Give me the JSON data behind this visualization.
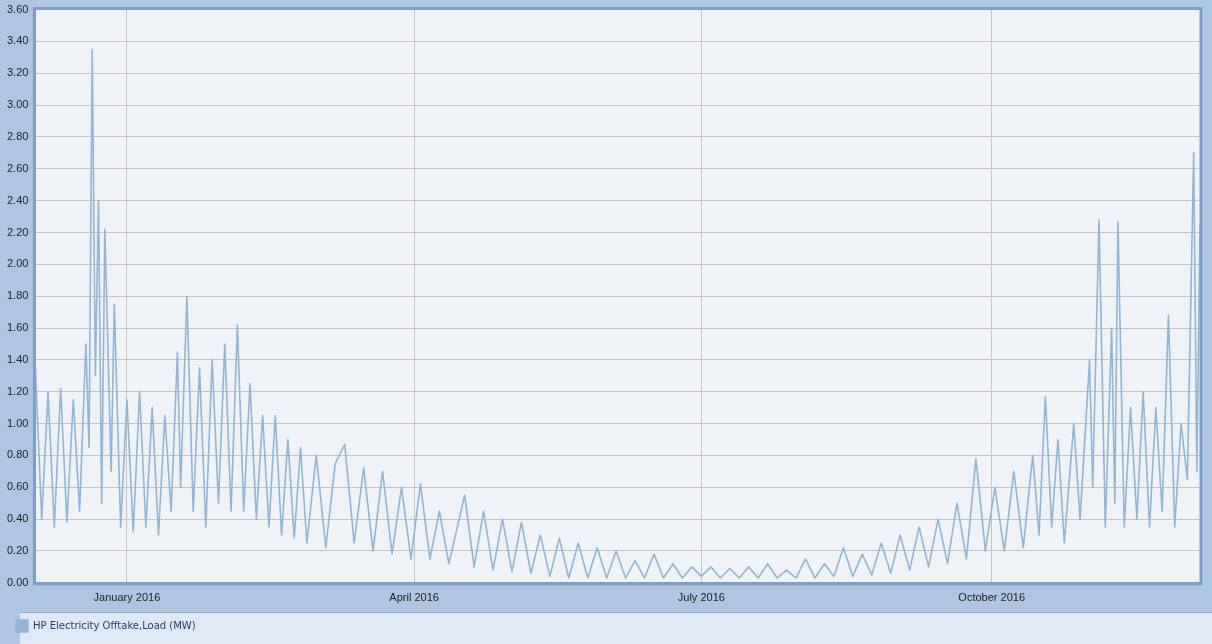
{
  "chart_data": {
    "type": "line",
    "xlim": [
      "2015-12-03",
      "2016-12-06"
    ],
    "xticks": [
      {
        "value": "2016-01-01",
        "label": "January 2016"
      },
      {
        "value": "2016-04-01",
        "label": "April 2016"
      },
      {
        "value": "2016-07-01",
        "label": "July 2016"
      },
      {
        "value": "2016-10-01",
        "label": "October 2016"
      }
    ],
    "ylim": [
      0,
      3.6
    ],
    "yticks": [
      {
        "value": 0,
        "label": "0.00"
      },
      {
        "value": 0.2,
        "label": "0.20"
      },
      {
        "value": 0.4,
        "label": "0.40"
      },
      {
        "value": 0.6,
        "label": "0.60"
      },
      {
        "value": 0.8,
        "label": "0.80"
      },
      {
        "value": 1,
        "label": "1.00"
      },
      {
        "value": 1.2,
        "label": "1.20"
      },
      {
        "value": 1.4,
        "label": "1.40"
      },
      {
        "value": 1.6,
        "label": "1.60"
      },
      {
        "value": 1.8,
        "label": "1.80"
      },
      {
        "value": 2,
        "label": "2.00"
      },
      {
        "value": 2.2,
        "label": "2.20"
      },
      {
        "value": 2.4,
        "label": "2.40"
      },
      {
        "value": 2.6,
        "label": "2.60"
      },
      {
        "value": 2.8,
        "label": "2.80"
      },
      {
        "value": 3,
        "label": "3.00"
      },
      {
        "value": 3.2,
        "label": "3.20"
      },
      {
        "value": 3.4,
        "label": "3.40"
      },
      {
        "value": 3.6,
        "label": "3.60"
      }
    ],
    "grid": true,
    "legend": "bottom",
    "marker": "none",
    "line_style": "solid",
    "x": [
      "2015-12-03",
      "2015-12-05",
      "2015-12-07",
      "2015-12-09",
      "2015-12-11",
      "2015-12-13",
      "2015-12-15",
      "2015-12-17",
      "2015-12-19",
      "2015-12-20",
      "2015-12-21",
      "2015-12-22",
      "2015-12-23",
      "2015-12-24",
      "2015-12-25",
      "2015-12-27",
      "2015-12-28",
      "2015-12-30",
      "2016-01-01",
      "2016-01-03",
      "2016-01-05",
      "2016-01-07",
      "2016-01-09",
      "2016-01-11",
      "2016-01-13",
      "2016-01-15",
      "2016-01-17",
      "2016-01-18",
      "2016-01-20",
      "2016-01-22",
      "2016-01-24",
      "2016-01-26",
      "2016-01-28",
      "2016-01-30",
      "2016-02-01",
      "2016-02-03",
      "2016-02-05",
      "2016-02-07",
      "2016-02-09",
      "2016-02-11",
      "2016-02-13",
      "2016-02-15",
      "2016-02-17",
      "2016-02-19",
      "2016-02-21",
      "2016-02-23",
      "2016-02-25",
      "2016-02-27",
      "2016-03-01",
      "2016-03-04",
      "2016-03-07",
      "2016-03-10",
      "2016-03-13",
      "2016-03-16",
      "2016-03-19",
      "2016-03-22",
      "2016-03-25",
      "2016-03-28",
      "2016-03-31",
      "2016-04-03",
      "2016-04-06",
      "2016-04-09",
      "2016-04-12",
      "2016-04-17",
      "2016-04-20",
      "2016-04-23",
      "2016-04-26",
      "2016-04-29",
      "2016-05-02",
      "2016-05-05",
      "2016-05-08",
      "2016-05-11",
      "2016-05-14",
      "2016-05-17",
      "2016-05-20",
      "2016-05-23",
      "2016-05-26",
      "2016-05-29",
      "2016-06-01",
      "2016-06-04",
      "2016-06-07",
      "2016-06-10",
      "2016-06-13",
      "2016-06-16",
      "2016-06-19",
      "2016-06-22",
      "2016-06-25",
      "2016-06-28",
      "2016-07-01",
      "2016-07-04",
      "2016-07-07",
      "2016-07-10",
      "2016-07-13",
      "2016-07-16",
      "2016-07-19",
      "2016-07-22",
      "2016-07-25",
      "2016-07-28",
      "2016-07-31",
      "2016-08-03",
      "2016-08-06",
      "2016-08-09",
      "2016-08-12",
      "2016-08-15",
      "2016-08-18",
      "2016-08-21",
      "2016-08-24",
      "2016-08-27",
      "2016-08-30",
      "2016-09-02",
      "2016-09-05",
      "2016-09-08",
      "2016-09-11",
      "2016-09-14",
      "2016-09-17",
      "2016-09-20",
      "2016-09-23",
      "2016-09-26",
      "2016-09-29",
      "2016-10-02",
      "2016-10-05",
      "2016-10-08",
      "2016-10-11",
      "2016-10-14",
      "2016-10-16",
      "2016-10-18",
      "2016-10-20",
      "2016-10-22",
      "2016-10-24",
      "2016-10-27",
      "2016-10-29",
      "2016-11-01",
      "2016-11-02",
      "2016-11-04",
      "2016-11-06",
      "2016-11-08",
      "2016-11-09",
      "2016-11-10",
      "2016-11-12",
      "2016-11-14",
      "2016-11-16",
      "2016-11-18",
      "2016-11-20",
      "2016-11-22",
      "2016-11-24",
      "2016-11-26",
      "2016-11-28",
      "2016-11-30",
      "2016-12-02",
      "2016-12-04",
      "2016-12-05",
      "2016-12-06"
    ],
    "series": [
      {
        "name": "HP Electricity Offtake,Load (MW)",
        "color": "#93b5d6",
        "values": [
          1.35,
          0.4,
          1.2,
          0.35,
          1.22,
          0.38,
          1.15,
          0.45,
          1.5,
          0.85,
          3.35,
          1.3,
          2.4,
          0.5,
          2.22,
          0.7,
          1.75,
          0.35,
          1.15,
          0.32,
          1.2,
          0.35,
          1.1,
          0.3,
          1.05,
          0.45,
          1.45,
          0.6,
          1.8,
          0.45,
          1.35,
          0.35,
          1.4,
          0.5,
          1.5,
          0.45,
          1.62,
          0.45,
          1.25,
          0.4,
          1.05,
          0.35,
          1.05,
          0.3,
          0.9,
          0.28,
          0.85,
          0.25,
          0.8,
          0.22,
          0.75,
          0.87,
          0.25,
          0.72,
          0.2,
          0.7,
          0.18,
          0.6,
          0.15,
          0.62,
          0.15,
          0.45,
          0.12,
          0.55,
          0.1,
          0.45,
          0.08,
          0.4,
          0.07,
          0.38,
          0.06,
          0.3,
          0.04,
          0.28,
          0.03,
          0.25,
          0.03,
          0.22,
          0.03,
          0.2,
          0.03,
          0.14,
          0.03,
          0.18,
          0.03,
          0.12,
          0.03,
          0.1,
          0.04,
          0.1,
          0.03,
          0.09,
          0.03,
          0.1,
          0.03,
          0.12,
          0.03,
          0.08,
          0.03,
          0.15,
          0.03,
          0.12,
          0.04,
          0.22,
          0.04,
          0.18,
          0.05,
          0.25,
          0.06,
          0.3,
          0.08,
          0.35,
          0.1,
          0.4,
          0.12,
          0.5,
          0.15,
          0.78,
          0.2,
          0.6,
          0.2,
          0.7,
          0.22,
          0.8,
          0.3,
          1.17,
          0.35,
          0.9,
          0.25,
          1.0,
          0.4,
          1.4,
          0.6,
          2.28,
          0.35,
          1.6,
          0.5,
          2.27,
          0.35,
          1.1,
          0.4,
          1.2,
          0.35,
          1.1,
          0.45,
          1.68,
          0.35,
          1.0,
          0.65,
          2.7,
          0.7,
          2.25
        ]
      }
    ]
  }
}
